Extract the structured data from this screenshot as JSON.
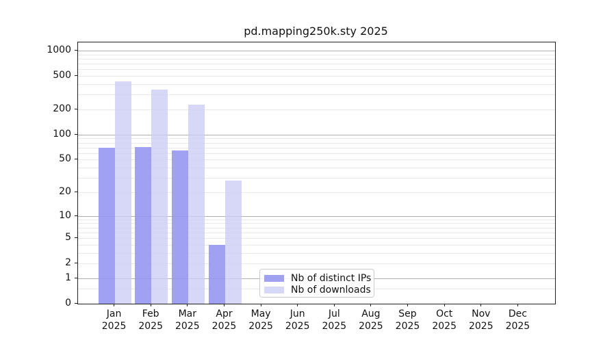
{
  "chart_data": {
    "type": "bar",
    "title": "pd.mapping250k.sty 2025",
    "x_axis": {
      "categories": [
        "Jan",
        "Feb",
        "Mar",
        "Apr",
        "May",
        "Jun",
        "Jul",
        "Aug",
        "Sep",
        "Oct",
        "Nov",
        "Dec"
      ],
      "year_label": "2025"
    },
    "y_axis": {
      "scale": "log1p",
      "ticks": [
        0,
        1,
        2,
        5,
        10,
        20,
        50,
        100,
        200,
        500,
        1000
      ],
      "max": 1250
    },
    "series": [
      {
        "key": "distinct-ips",
        "name": "Nb of distinct IPs",
        "color": "#9797ef",
        "opacity": 0.9,
        "values": [
          69,
          71,
          65,
          4,
          0,
          0,
          0,
          0,
          0,
          0,
          0,
          0
        ]
      },
      {
        "key": "downloads",
        "name": "Nb of downloads",
        "color": "#cdcdf6",
        "opacity": 0.8,
        "values": [
          433,
          346,
          230,
          28,
          0,
          0,
          0,
          0,
          0,
          0,
          0,
          0
        ]
      }
    ],
    "legend": {
      "entries": [
        "Nb of distinct IPs",
        "Nb of downloads"
      ],
      "position": "lower center"
    },
    "grid": {
      "major_color": "#b0b0b0",
      "minor_color": "#e9e9e9",
      "major_values": [
        1,
        10,
        100,
        1000
      ],
      "minor_values": [
        0.5,
        2,
        3,
        4,
        5,
        6,
        7,
        8,
        9,
        20,
        30,
        40,
        50,
        60,
        70,
        80,
        90,
        200,
        300,
        400,
        500,
        600,
        700,
        800,
        900
      ]
    }
  }
}
